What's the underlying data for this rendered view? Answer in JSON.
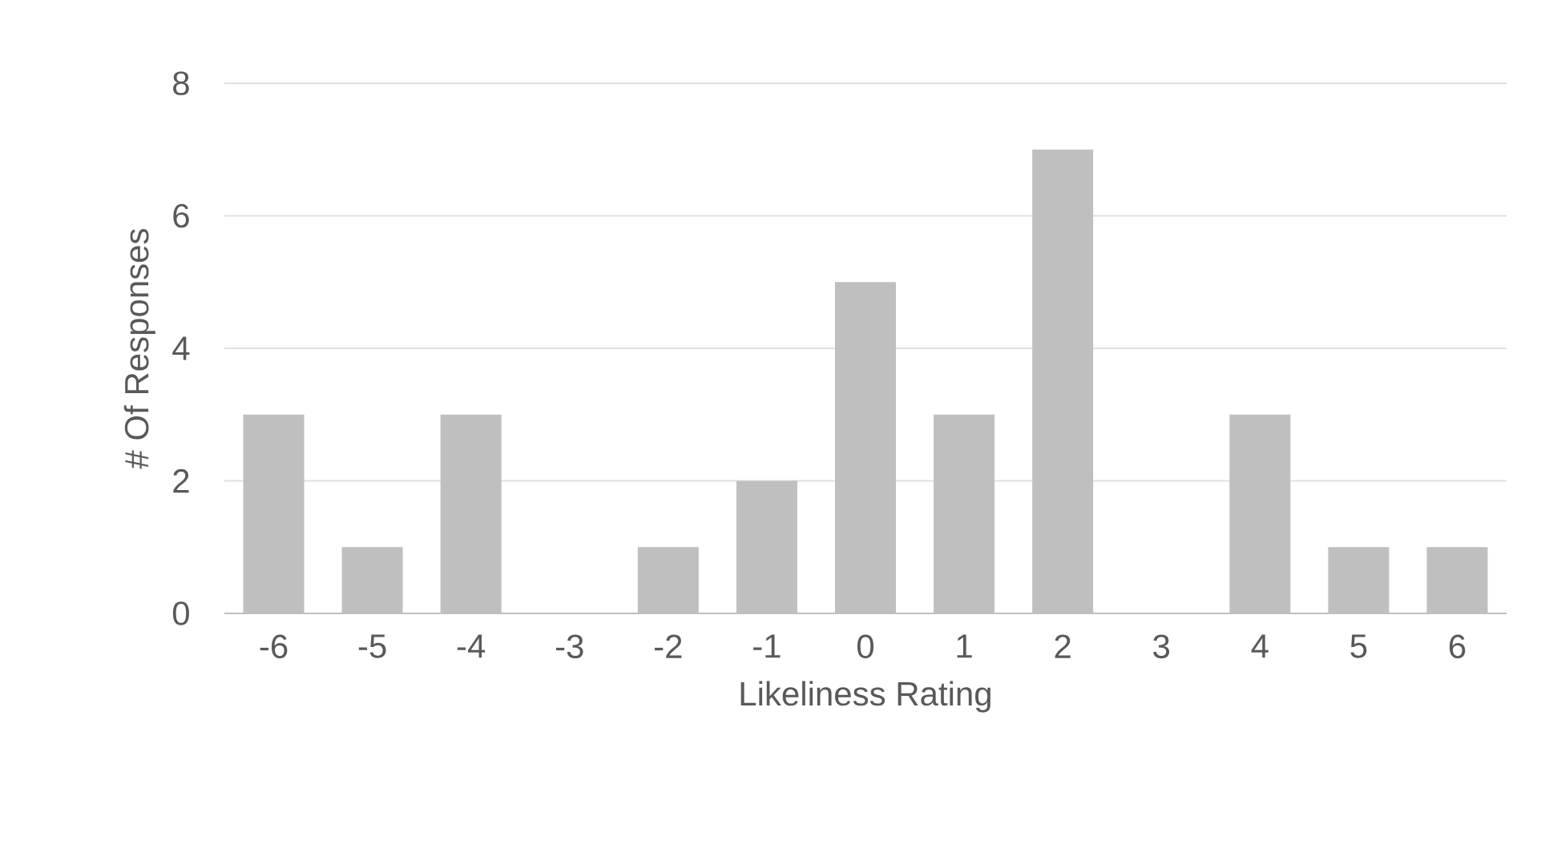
{
  "chart_data": {
    "type": "bar",
    "xlabel": "Likeliness Rating",
    "ylabel": "# Of Responses",
    "categories": [
      "-6",
      "-5",
      "-4",
      "-3",
      "-2",
      "-1",
      "0",
      "1",
      "2",
      "3",
      "4",
      "5",
      "6"
    ],
    "values": [
      3,
      1,
      3,
      0,
      1,
      2,
      5,
      3,
      7,
      0,
      3,
      1,
      1
    ],
    "color": "#bfbfbf",
    "ylim": [
      0,
      8
    ],
    "yticks": [
      0,
      2,
      4,
      6,
      8
    ],
    "grid": "y"
  }
}
